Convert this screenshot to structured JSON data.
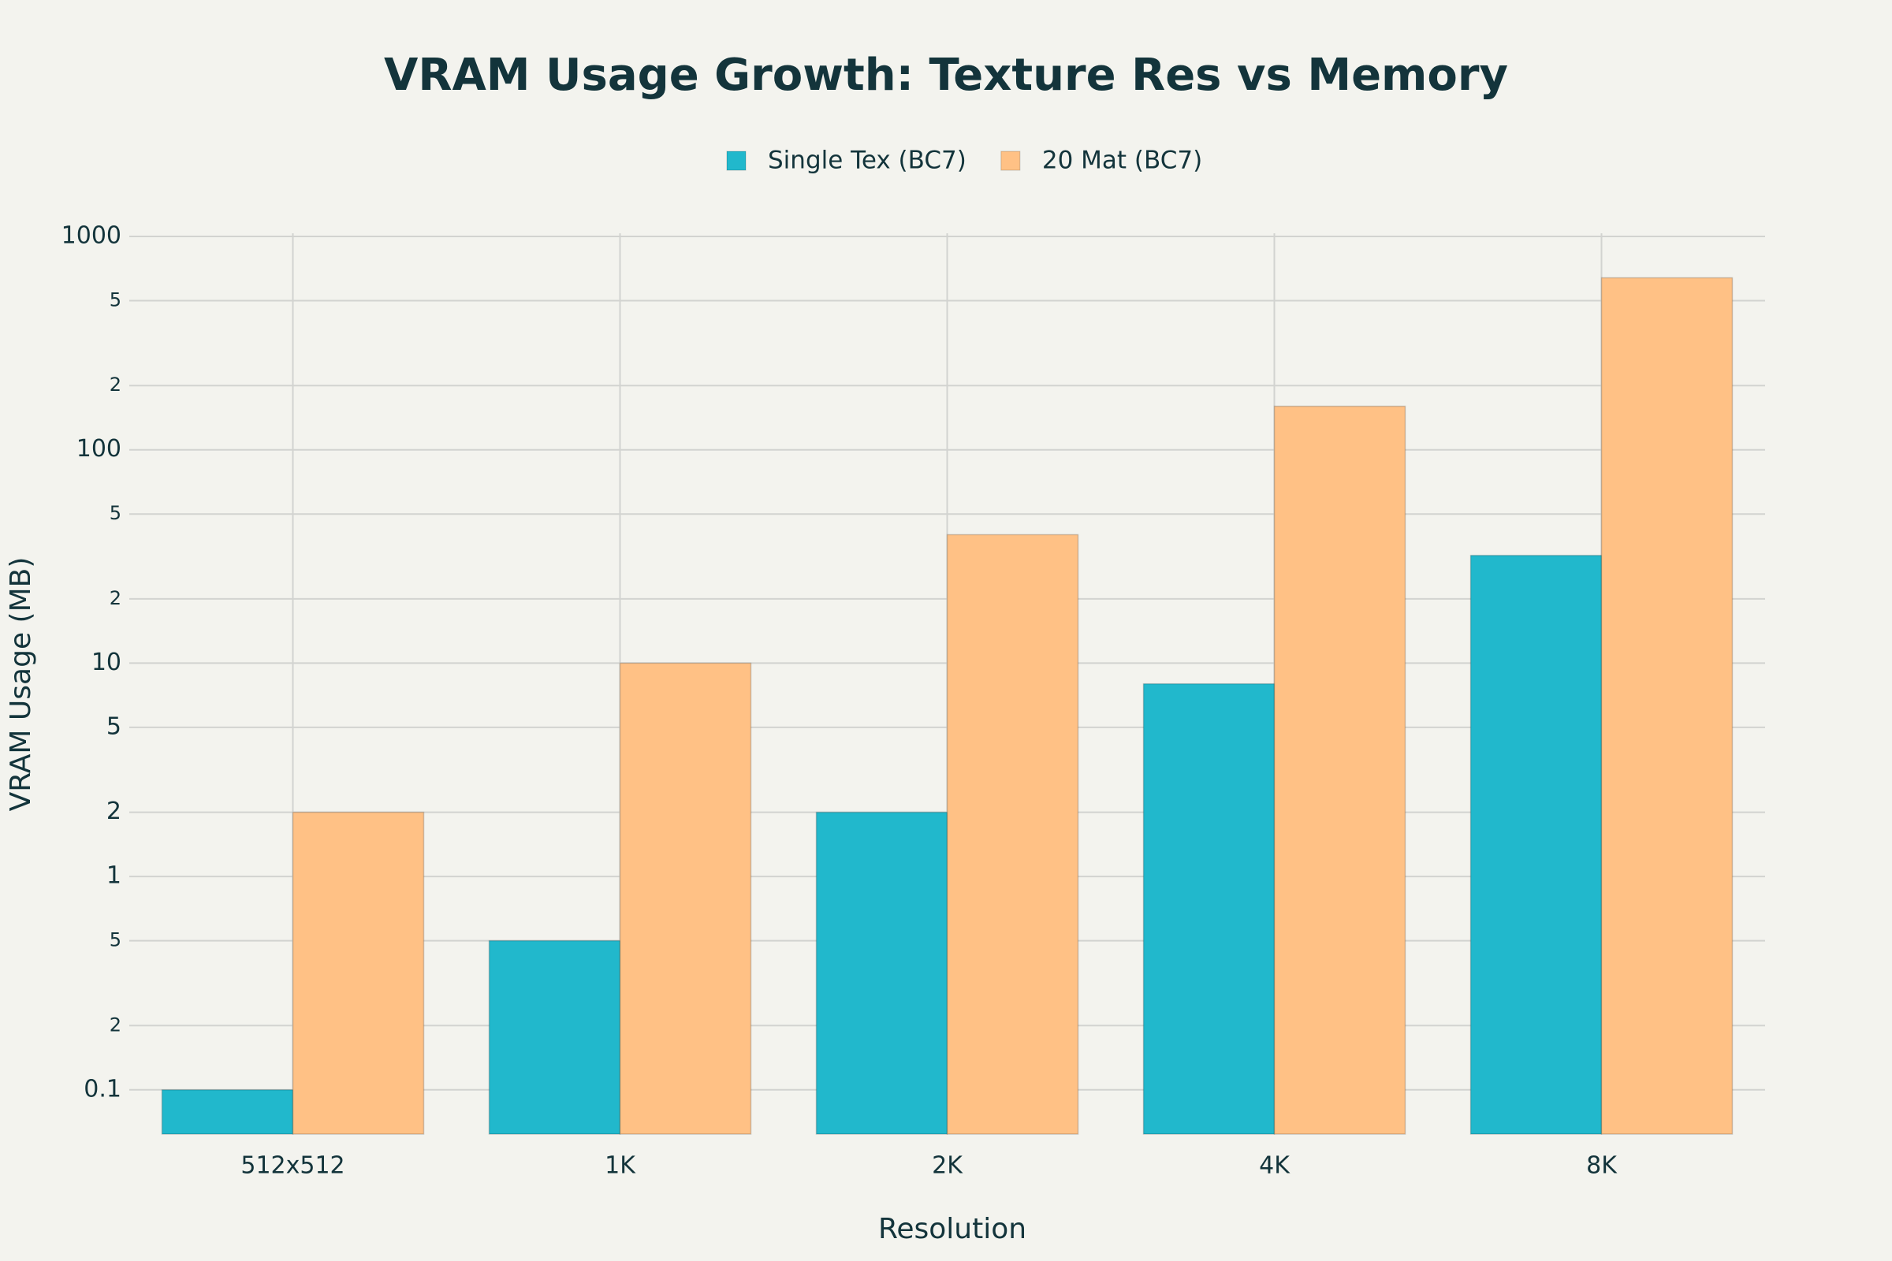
{
  "chart_data": {
    "type": "bar",
    "title": "VRAM Usage Growth: Texture Res vs Memory",
    "x_label": "Resolution",
    "y_label": "VRAM Usage (MB)",
    "categories": [
      "512x512",
      "1K",
      "2K",
      "4K",
      "8K"
    ],
    "series": [
      {
        "name": "Single Tex (BC7)",
        "color": "#21B8CC",
        "values": [
          0.1,
          0.5,
          2,
          8,
          32
        ]
      },
      {
        "name": "20 Mat (BC7)",
        "color": "#FFC185",
        "values": [
          2,
          10,
          40,
          160,
          640
        ]
      }
    ],
    "y_log": true,
    "ylim": [
      0.062,
      1000
    ],
    "yticks": [
      0.1,
      {
        "value": 0.2,
        "label": "2"
      },
      {
        "value": 0.5,
        "label": "5"
      },
      1,
      2,
      5,
      10,
      {
        "value": 20,
        "label": "2"
      },
      {
        "value": 50,
        "label": "5"
      },
      100,
      {
        "value": 200,
        "label": "2"
      },
      {
        "value": 500,
        "label": "5"
      },
      1000
    ],
    "grid": true,
    "legend": "top"
  }
}
